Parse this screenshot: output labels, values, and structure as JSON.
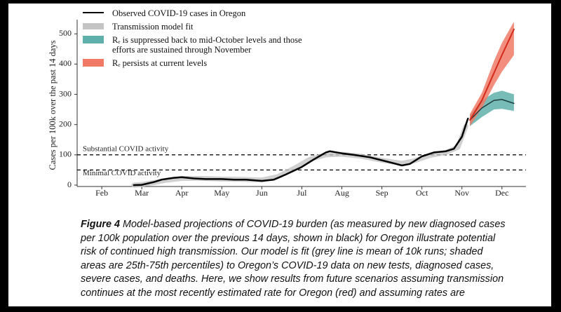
{
  "chart_data": {
    "type": "line",
    "y_label": "Cases per 100k over the past 14 days",
    "xlim": [
      1.56,
      12.6
    ],
    "xticks": [
      {
        "value": 2,
        "label": "Feb"
      },
      {
        "value": 3,
        "label": "Mar"
      },
      {
        "value": 4,
        "label": "Apr"
      },
      {
        "value": 5,
        "label": "May"
      },
      {
        "value": 6,
        "label": "Jun"
      },
      {
        "value": 7,
        "label": "Jul"
      },
      {
        "value": 8,
        "label": "Aug"
      },
      {
        "value": 9,
        "label": "Sep"
      },
      {
        "value": 10,
        "label": "Oct"
      },
      {
        "value": 11,
        "label": "Nov"
      },
      {
        "value": 12,
        "label": "Dec"
      }
    ],
    "ylim": [
      0,
      540
    ],
    "yticks": [
      0,
      100,
      200,
      300,
      400,
      500
    ],
    "reference_lines": [
      {
        "value": 100,
        "label": "Substantial COVID activity"
      },
      {
        "value": 50,
        "label": "Minimal COVID activity"
      }
    ],
    "series": [
      {
        "name": "Observed COVID-19 cases in Oregon",
        "color": "#000000",
        "line_width": 2.5,
        "x": [
          2.8,
          3.0,
          3.3,
          3.5,
          3.8,
          4.0,
          4.3,
          4.6,
          5.0,
          5.3,
          5.6,
          6.0,
          6.3,
          6.6,
          7.0,
          7.3,
          7.6,
          7.7,
          8.0,
          8.3,
          8.7,
          9.0,
          9.3,
          9.5,
          9.7,
          10.0,
          10.3,
          10.6,
          10.8,
          11.0,
          11.1,
          11.15
        ],
        "values": [
          0,
          1,
          10,
          18,
          24,
          26,
          22,
          20,
          20,
          18,
          18,
          14,
          18,
          35,
          60,
          85,
          108,
          112,
          105,
          100,
          92,
          82,
          72,
          65,
          70,
          95,
          108,
          112,
          120,
          160,
          200,
          220
        ]
      },
      {
        "name": "Transmission model fit",
        "color": "#c4c4c4",
        "line_width": 7,
        "x": [
          2.8,
          3.0,
          3.3,
          3.6,
          4.0,
          4.5,
          5.0,
          5.5,
          6.0,
          6.4,
          6.8,
          7.2,
          7.6,
          8.0,
          8.5,
          9.0,
          9.5,
          9.8,
          10.2,
          10.6,
          10.9,
          11.1
        ],
        "values": [
          0,
          2,
          8,
          16,
          22,
          22,
          20,
          19,
          17,
          28,
          55,
          85,
          100,
          102,
          95,
          82,
          72,
          80,
          98,
          108,
          125,
          195
        ]
      },
      {
        "name": "Rₑ is suppressed back to mid-October levels and those efforts are sustained through November",
        "color": "#1f3f3f",
        "band_color": "#5fb0aa",
        "line_width": 1.5,
        "x": [
          11.2,
          11.5,
          11.8,
          12.0,
          12.3
        ],
        "values": [
          215,
          255,
          280,
          283,
          270
        ],
        "lower": [
          195,
          225,
          250,
          252,
          245
        ],
        "upper": [
          232,
          280,
          305,
          312,
          300
        ]
      },
      {
        "name": "Rₑ persists at current levels",
        "color": "#d42a1a",
        "band_color": "#f07a66",
        "line_width": 2,
        "x": [
          11.2,
          11.5,
          11.8,
          12.0,
          12.3
        ],
        "values": [
          215,
          280,
          370,
          430,
          515
        ],
        "lower": [
          195,
          255,
          330,
          375,
          430
        ],
        "upper": [
          235,
          305,
          410,
          470,
          540
        ]
      }
    ]
  },
  "caption": {
    "label": "Figure 4",
    "lines": [
      "Model-based projections of COVID-19 burden (as measured by new diagnosed cases",
      "per 100k population over the previous 14 days, shown in black) for Oregon illustrate potential",
      "risk of continued high transmission. Our model is fit (grey line is mean of 10k runs; shaded",
      "areas are 25th-75th percentiles) to Oregon’s COVID-19 data on new tests, diagnosed cases,",
      "severe cases, and deaths. Here, we show results from future scenarios assuming transmission",
      "continues at the most recently estimated rate for Oregon (red) and assuming rates are"
    ]
  }
}
